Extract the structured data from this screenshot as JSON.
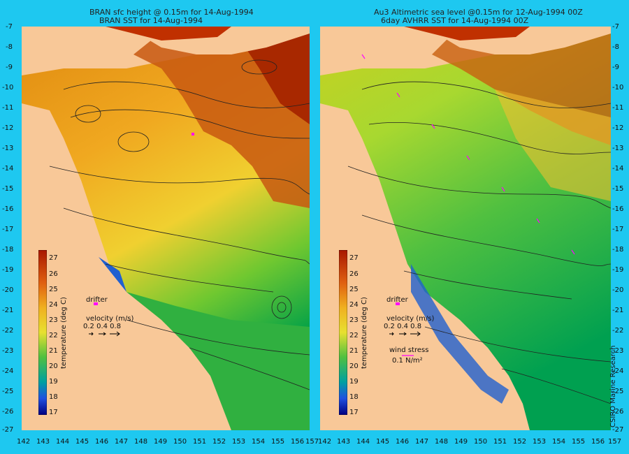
{
  "left_panel": {
    "title_line1": "BRAN sfc height @ 0.15m for 14-Aug-1994",
    "title_line2": "BRAN SST for 14-Aug-1994"
  },
  "right_panel": {
    "title_line1": "Au3 Altimetric sea level  @0.15m  for 12-Aug-1994 00Z",
    "title_line2": "6day AVHRR SST for 14-Aug-1994 00Z"
  },
  "y_ticks": [
    "-7",
    "-8",
    "-9",
    "-10",
    "-11",
    "-12",
    "-13",
    "-14",
    "-15",
    "-16",
    "-17",
    "-18",
    "-19",
    "-20",
    "-21",
    "-22",
    "-23",
    "-24",
    "-25",
    "-26",
    "-27"
  ],
  "x_ticks_left": [
    "142",
    "143",
    "144",
    "145",
    "146",
    "147",
    "148",
    "149",
    "150",
    "151",
    "152",
    "153",
    "154",
    "155",
    "156",
    "157"
  ],
  "x_ticks_right": [
    "142",
    "143",
    "144",
    "145",
    "146",
    "147",
    "148",
    "149",
    "150",
    "151",
    "152",
    "153",
    "154",
    "155",
    "156",
    "157"
  ],
  "colorbar": {
    "label": "temperature (deg C)",
    "ticks": [
      "27",
      "26",
      "25",
      "24",
      "23",
      "22",
      "21",
      "20",
      "19",
      "18",
      "17"
    ]
  },
  "legend": {
    "drifter": "drifter",
    "velocity": "velocity (m/s)",
    "velocity_scale": "0.2 0.4 0.8",
    "wind_stress": "wind stress",
    "wind_scale": "0.1 N/m²"
  },
  "credit": "CSIRO Marine Research",
  "colors": {
    "background": "#1ec8f0",
    "land": "#f8c898",
    "warm": "#c83c00",
    "cool": "#00a050",
    "vector": "#ff00ff"
  }
}
